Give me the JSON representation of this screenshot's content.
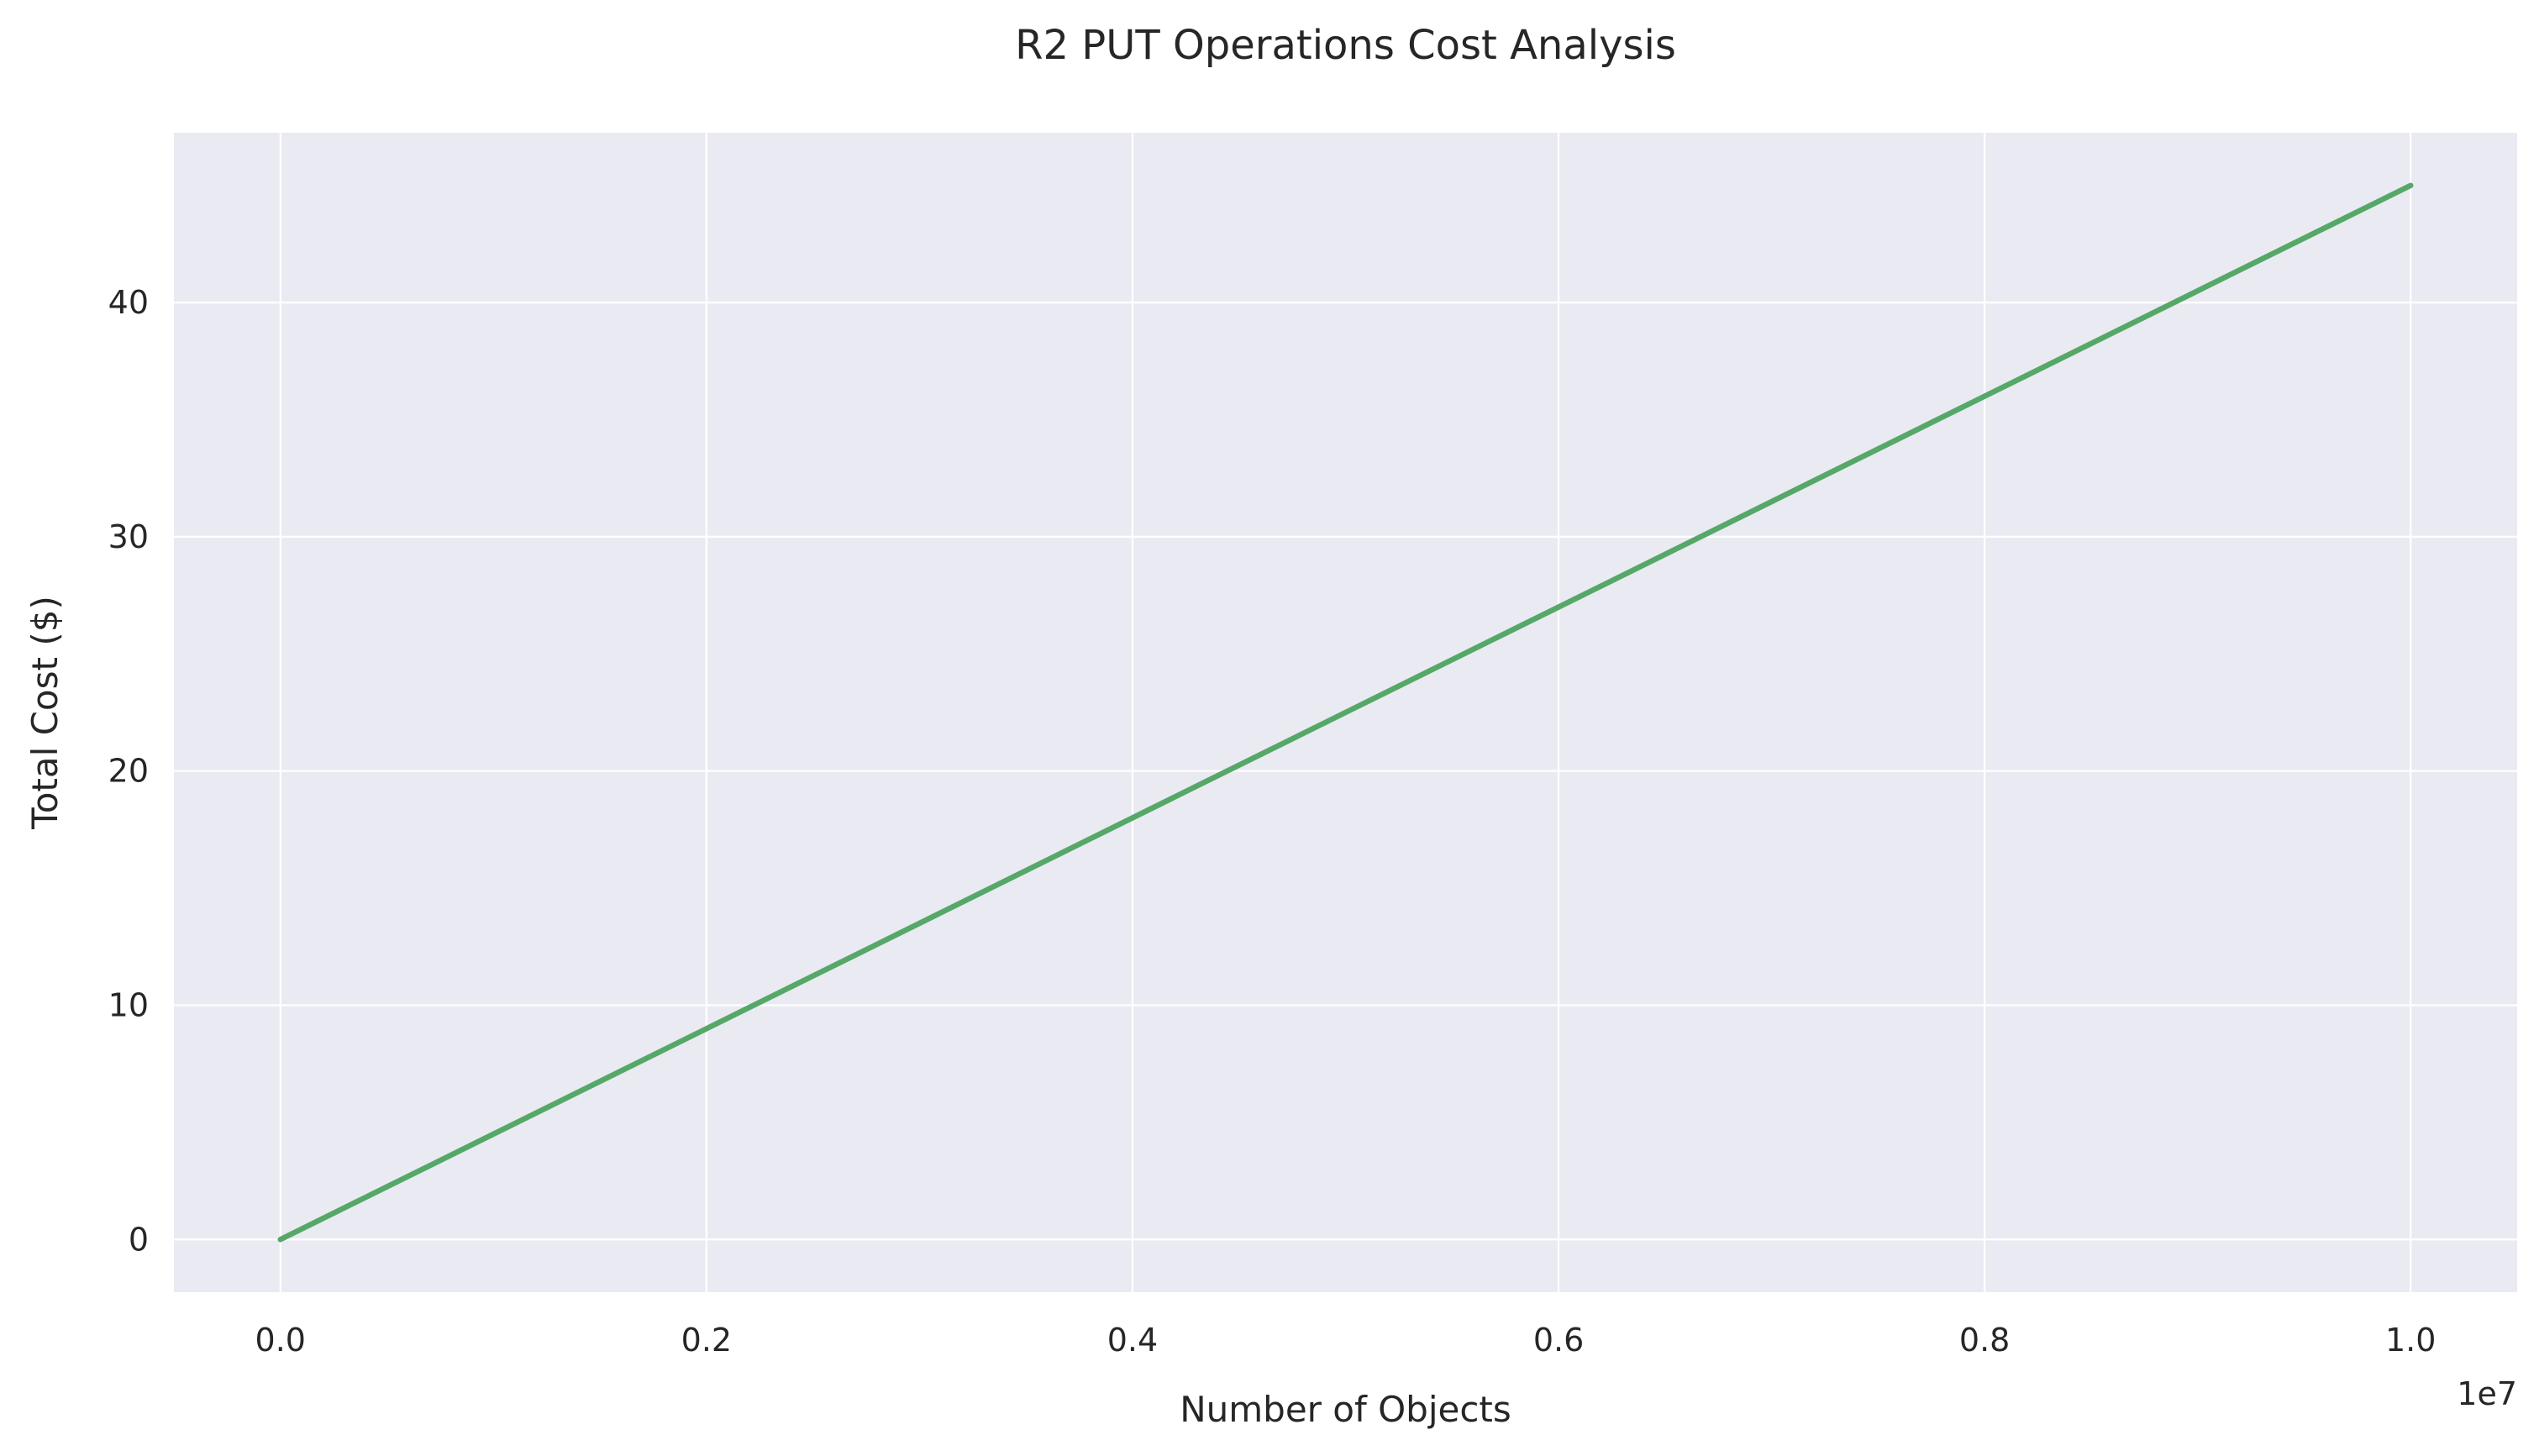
{
  "chart_data": {
    "type": "line",
    "title": "R2 PUT Operations Cost Analysis",
    "xlabel": "Number of Objects",
    "ylabel": "Total Cost ($)",
    "x_offset_label": "1e7",
    "xlim": [
      -0.05,
      1.05
    ],
    "ylim": [
      -2.25,
      47.25
    ],
    "x_ticks": [
      0.0,
      0.2,
      0.4,
      0.6,
      0.8,
      1.0
    ],
    "x_tick_labels": [
      "0.0",
      "0.2",
      "0.4",
      "0.6",
      "0.8",
      "1.0"
    ],
    "y_ticks": [
      0,
      10,
      20,
      30,
      40
    ],
    "y_tick_labels": [
      "0",
      "10",
      "20",
      "30",
      "40"
    ],
    "grid": true,
    "series": [
      {
        "x": [
          0,
          1000000,
          2000000,
          3000000,
          4000000,
          5000000,
          6000000,
          7000000,
          8000000,
          9000000,
          10000000
        ],
        "values": [
          0,
          4.5,
          9,
          13.5,
          18,
          22.5,
          27,
          31.5,
          36,
          40.5,
          45
        ],
        "color": "#55a868"
      }
    ],
    "colors": {
      "plot_background": "#eaeaf2",
      "grid": "#ffffff",
      "text": "#262626"
    }
  }
}
